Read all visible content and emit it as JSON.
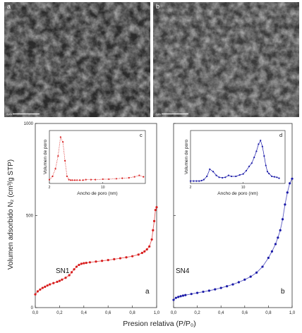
{
  "micrographs": [
    {
      "label": "a",
      "scalebar": "2μm"
    },
    {
      "label": "b",
      "scalebar": "2μm"
    }
  ],
  "chart_data": {
    "type": "scatter",
    "ylabel": "Volumen adsorbido N₂ (cm³/g STP)",
    "xlabel": "Presion relativa (P/P₀)",
    "ylim": [
      0,
      1000
    ],
    "yticks": [
      "0",
      "500",
      "1000"
    ],
    "xlim": [
      0,
      1.0
    ],
    "xticks": [
      "0,0",
      "0,2",
      "0,4",
      "0,6",
      "0,8",
      "1,0"
    ],
    "panels": [
      {
        "id": "a",
        "sample": "SN1",
        "color": "#d81e1e",
        "x": [
          0.0,
          0.02,
          0.04,
          0.06,
          0.08,
          0.1,
          0.12,
          0.15,
          0.18,
          0.2,
          0.22,
          0.25,
          0.28,
          0.3,
          0.32,
          0.34,
          0.36,
          0.38,
          0.4,
          0.42,
          0.45,
          0.5,
          0.55,
          0.6,
          0.65,
          0.7,
          0.75,
          0.8,
          0.85,
          0.88,
          0.9,
          0.92,
          0.94,
          0.96,
          0.97,
          0.98,
          0.99,
          1.0
        ],
        "y": [
          72,
          88,
          98,
          107,
          113,
          120,
          126,
          133,
          140,
          145,
          152,
          162,
          176,
          192,
          208,
          222,
          232,
          238,
          241,
          243,
          246,
          250,
          254,
          258,
          263,
          268,
          273,
          279,
          288,
          297,
          305,
          316,
          332,
          370,
          420,
          470,
          530,
          545
        ],
        "inset": {
          "label": "c",
          "xlabel": "Ancho de poro (nm)",
          "ylabel": "Volumen de poro",
          "xticks": [
            "2",
            "10"
          ],
          "x": [
            2,
            2.2,
            2.4,
            2.6,
            2.8,
            3.0,
            3.2,
            3.4,
            3.6,
            3.8,
            4.0,
            4.3,
            4.6,
            5,
            5.5,
            6,
            7,
            8,
            10,
            12,
            15,
            18,
            22,
            26,
            30,
            34
          ],
          "y": [
            0.05,
            0.12,
            0.28,
            0.55,
            0.95,
            0.85,
            0.45,
            0.12,
            0.05,
            0.04,
            0.04,
            0.04,
            0.04,
            0.04,
            0.04,
            0.05,
            0.05,
            0.05,
            0.06,
            0.06,
            0.07,
            0.08,
            0.09,
            0.11,
            0.14,
            0.11
          ]
        }
      },
      {
        "id": "b",
        "sample": "SN4",
        "color": "#1a1aa8",
        "x": [
          0.0,
          0.02,
          0.04,
          0.06,
          0.08,
          0.1,
          0.15,
          0.2,
          0.25,
          0.3,
          0.35,
          0.4,
          0.45,
          0.5,
          0.55,
          0.6,
          0.65,
          0.7,
          0.75,
          0.8,
          0.83,
          0.86,
          0.88,
          0.9,
          0.92,
          0.94,
          0.96,
          0.98,
          1.0
        ],
        "y": [
          42,
          53,
          58,
          62,
          65,
          68,
          74,
          80,
          86,
          92,
          99,
          107,
          116,
          126,
          138,
          152,
          168,
          190,
          222,
          270,
          305,
          345,
          380,
          420,
          480,
          560,
          625,
          675,
          700
        ],
        "inset": {
          "label": "d",
          "xlabel": "Ancho de poro (nm)",
          "ylabel": "Volumen de poro",
          "xticks": [
            "2",
            "10"
          ],
          "x": [
            2,
            2.2,
            2.4,
            2.6,
            2.8,
            3.0,
            3.3,
            3.6,
            4.0,
            4.4,
            4.8,
            5.3,
            5.8,
            6.4,
            7,
            8,
            9,
            10,
            11,
            12,
            13,
            14,
            15,
            16,
            17,
            18,
            19,
            20,
            21,
            22,
            24,
            26,
            28,
            30
          ],
          "y": [
            0.02,
            0.02,
            0.02,
            0.02,
            0.03,
            0.05,
            0.12,
            0.27,
            0.22,
            0.14,
            0.1,
            0.09,
            0.1,
            0.14,
            0.12,
            0.12,
            0.15,
            0.17,
            0.24,
            0.33,
            0.4,
            0.52,
            0.65,
            0.8,
            0.88,
            0.75,
            0.55,
            0.35,
            0.22,
            0.18,
            0.12,
            0.11,
            0.1,
            0.08
          ]
        }
      }
    ]
  }
}
